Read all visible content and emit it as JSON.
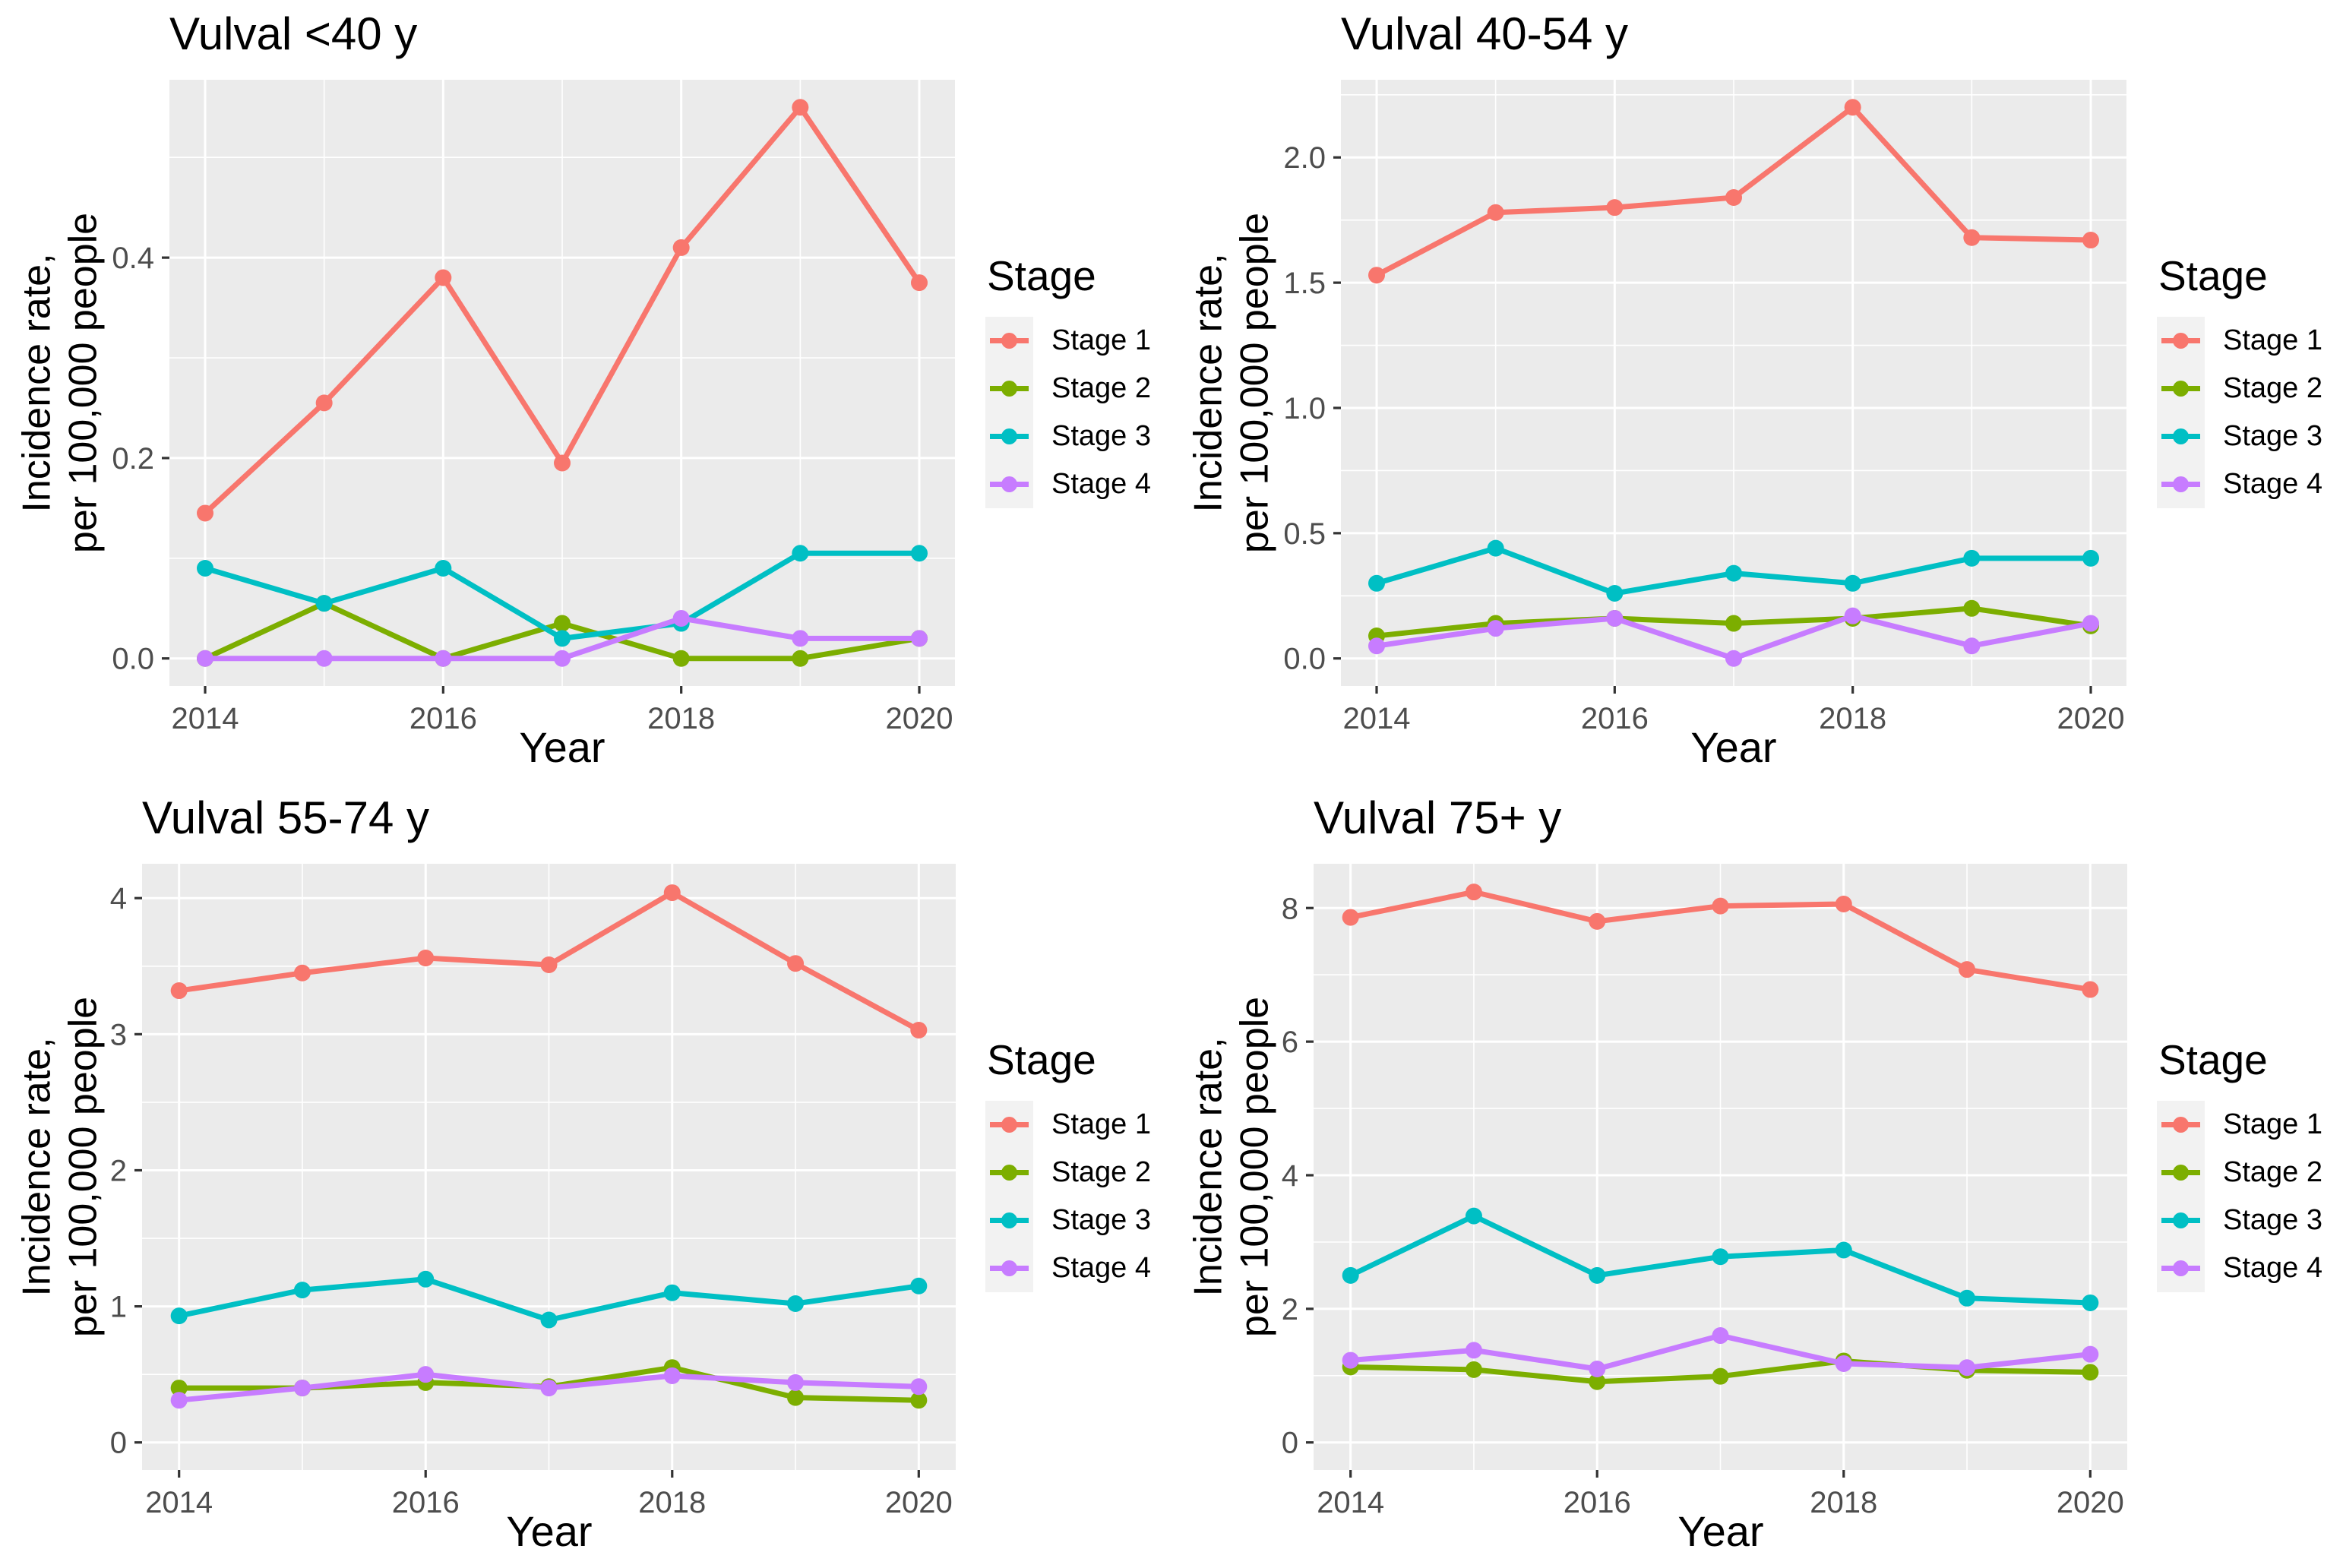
{
  "figure_title": "",
  "legend": {
    "title": "Stage",
    "position": "right",
    "items": [
      {
        "label": "Stage 1",
        "color": "#F8766D"
      },
      {
        "label": "Stage 2",
        "color": "#7CAE00"
      },
      {
        "label": "Stage 3",
        "color": "#00BFC4"
      },
      {
        "label": "Stage 4",
        "color": "#C77CFF"
      }
    ]
  },
  "colors": {
    "stage1": "#F8766D",
    "stage2": "#7CAE00",
    "stage3": "#00BFC4",
    "stage4": "#C77CFF",
    "panel_background": "#EBEBEB",
    "gridline": "#FFFFFF",
    "tick_mark": "#333333",
    "tick_label": "#4D4D4D",
    "legend_key_background": "#F2F2F2",
    "text": "#000000"
  },
  "chart_data": [
    {
      "type": "line",
      "title": "Vulval <40 y",
      "xlabel": "Year",
      "ylabel_line1": "Incidence rate,",
      "ylabel_line2": "per 100,000 people",
      "grid": true,
      "x": [
        2014,
        2015,
        2016,
        2017,
        2018,
        2019,
        2020
      ],
      "xlim": [
        2013.7,
        2020.3
      ],
      "xticks": [
        2014,
        2016,
        2018,
        2020
      ],
      "xtick_labels": [
        "2014",
        "2016",
        "2018",
        "2020"
      ],
      "xminor": [
        2015,
        2017,
        2019
      ],
      "ylim": [
        -0.0275,
        0.5775
      ],
      "yticks": [
        0,
        0.2,
        0.4
      ],
      "ytick_labels": [
        "0.0",
        "0.2",
        "0.4"
      ],
      "yminor": [
        0.1,
        0.3,
        0.5
      ],
      "series": [
        {
          "name": "Stage 1",
          "color": "#F8766D",
          "values": [
            0.145,
            0.255,
            0.38,
            0.195,
            0.41,
            0.55,
            0.375
          ]
        },
        {
          "name": "Stage 2",
          "color": "#7CAE00",
          "values": [
            0.0,
            0.055,
            0.0,
            0.035,
            0.0,
            0.0,
            0.02
          ]
        },
        {
          "name": "Stage 3",
          "color": "#00BFC4",
          "values": [
            0.09,
            0.055,
            0.09,
            0.02,
            0.035,
            0.105,
            0.105
          ]
        },
        {
          "name": "Stage 4",
          "color": "#C77CFF",
          "values": [
            0.0,
            0.0,
            0.0,
            0.0,
            0.04,
            0.02,
            0.02
          ]
        }
      ]
    },
    {
      "type": "line",
      "title": "Vulval 40-54 y",
      "xlabel": "Year",
      "ylabel_line1": "Incidence rate,",
      "ylabel_line2": "per 100,000 people",
      "grid": true,
      "x": [
        2014,
        2015,
        2016,
        2017,
        2018,
        2019,
        2020
      ],
      "xlim": [
        2013.7,
        2020.3
      ],
      "xticks": [
        2014,
        2016,
        2018,
        2020
      ],
      "xtick_labels": [
        "2014",
        "2016",
        "2018",
        "2020"
      ],
      "xminor": [
        2015,
        2017,
        2019
      ],
      "ylim": [
        -0.11,
        2.31
      ],
      "yticks": [
        0,
        0.5,
        1.0,
        1.5,
        2.0
      ],
      "ytick_labels": [
        "0.0",
        "0.5",
        "1.0",
        "1.5",
        "2.0"
      ],
      "yminor": [
        0.25,
        0.75,
        1.25,
        1.75,
        2.25
      ],
      "series": [
        {
          "name": "Stage 1",
          "color": "#F8766D",
          "values": [
            1.53,
            1.78,
            1.8,
            1.84,
            2.2,
            1.68,
            1.67
          ]
        },
        {
          "name": "Stage 2",
          "color": "#7CAE00",
          "values": [
            0.09,
            0.14,
            0.16,
            0.14,
            0.16,
            0.2,
            0.13
          ]
        },
        {
          "name": "Stage 3",
          "color": "#00BFC4",
          "values": [
            0.3,
            0.44,
            0.26,
            0.34,
            0.3,
            0.4,
            0.4
          ]
        },
        {
          "name": "Stage 4",
          "color": "#C77CFF",
          "values": [
            0.05,
            0.12,
            0.16,
            0.0,
            0.17,
            0.05,
            0.14
          ]
        }
      ]
    },
    {
      "type": "line",
      "title": "Vulval 55-74 y",
      "xlabel": "Year",
      "ylabel_line1": "Incidence rate,",
      "ylabel_line2": "per 100,000 people",
      "grid": true,
      "x": [
        2014,
        2015,
        2016,
        2017,
        2018,
        2019,
        2020
      ],
      "xlim": [
        2013.7,
        2020.3
      ],
      "xticks": [
        2014,
        2016,
        2018,
        2020
      ],
      "xtick_labels": [
        "2014",
        "2016",
        "2018",
        "2020"
      ],
      "xminor": [
        2015,
        2017,
        2019
      ],
      "ylim": [
        -0.2025,
        4.2525
      ],
      "yticks": [
        0,
        1,
        2,
        3,
        4
      ],
      "ytick_labels": [
        "0",
        "1",
        "2",
        "3",
        "4"
      ],
      "yminor": [
        0.5,
        1.5,
        2.5,
        3.5
      ],
      "series": [
        {
          "name": "Stage 1",
          "color": "#F8766D",
          "values": [
            3.32,
            3.45,
            3.56,
            3.51,
            4.04,
            3.52,
            3.03
          ]
        },
        {
          "name": "Stage 2",
          "color": "#7CAE00",
          "values": [
            0.4,
            0.4,
            0.44,
            0.41,
            0.55,
            0.33,
            0.31
          ]
        },
        {
          "name": "Stage 3",
          "color": "#00BFC4",
          "values": [
            0.93,
            1.12,
            1.2,
            0.9,
            1.1,
            1.02,
            1.15
          ]
        },
        {
          "name": "Stage 4",
          "color": "#C77CFF",
          "values": [
            0.31,
            0.4,
            0.5,
            0.4,
            0.49,
            0.44,
            0.41
          ]
        }
      ]
    },
    {
      "type": "line",
      "title": "Vulval 75+ y",
      "xlabel": "Year",
      "ylabel_line1": "Incidence rate,",
      "ylabel_line2": "per 100,000 people",
      "grid": true,
      "x": [
        2014,
        2015,
        2016,
        2017,
        2018,
        2019,
        2020
      ],
      "xlim": [
        2013.7,
        2020.3
      ],
      "xticks": [
        2014,
        2016,
        2018,
        2020
      ],
      "xtick_labels": [
        "2014",
        "2016",
        "2018",
        "2020"
      ],
      "xminor": [
        2015,
        2017,
        2019
      ],
      "ylim": [
        -0.4125,
        8.6625
      ],
      "yticks": [
        0,
        2,
        4,
        6,
        8
      ],
      "ytick_labels": [
        "0",
        "2",
        "4",
        "6",
        "8"
      ],
      "yminor": [
        1,
        3,
        5,
        7
      ],
      "series": [
        {
          "name": "Stage 1",
          "color": "#F8766D",
          "values": [
            7.86,
            8.24,
            7.8,
            8.03,
            8.06,
            7.08,
            6.78
          ]
        },
        {
          "name": "Stage 2",
          "color": "#7CAE00",
          "values": [
            1.13,
            1.09,
            0.91,
            0.99,
            1.22,
            1.08,
            1.05
          ]
        },
        {
          "name": "Stage 3",
          "color": "#00BFC4",
          "values": [
            2.5,
            3.39,
            2.5,
            2.78,
            2.88,
            2.16,
            2.09
          ]
        },
        {
          "name": "Stage 4",
          "color": "#C77CFF",
          "values": [
            1.23,
            1.38,
            1.1,
            1.6,
            1.18,
            1.12,
            1.32
          ]
        }
      ]
    }
  ]
}
